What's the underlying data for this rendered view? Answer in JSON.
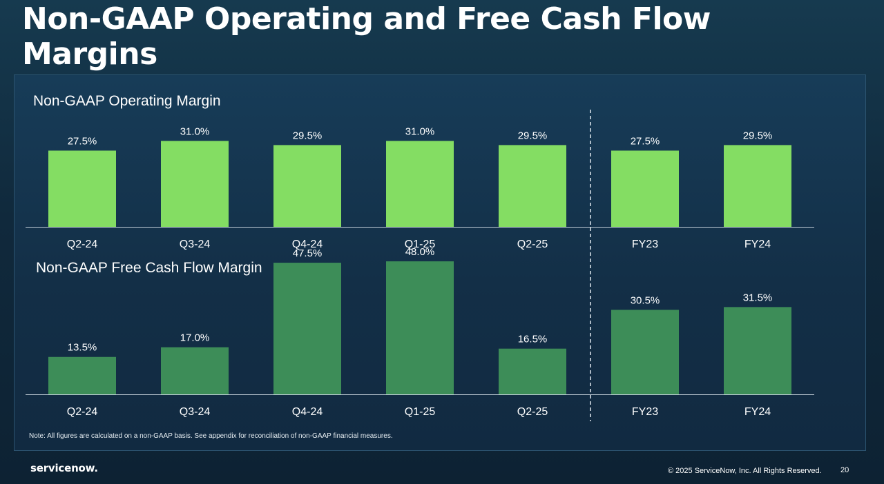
{
  "slide": {
    "title_line1": "Non-GAAP Operating and Free Cash Flow",
    "title_line2": "Margins",
    "note": "Note: All figures are calculated on a non-GAAP basis. See appendix for reconciliation of non-GAAP financial measures.",
    "logo_text": "servicenow.",
    "copyright": "© 2025 ServiceNow, Inc. All Rights Reserved.",
    "page_number": "20"
  },
  "colors": {
    "operating_bar": "#84dd63",
    "fcf_bar": "#3d8d58",
    "divider": "#dfe7ee",
    "axis": "#c7d3dc"
  },
  "chart_data": [
    {
      "type": "bar",
      "title": "Non-GAAP Operating Margin",
      "categories": [
        "Q2-24",
        "Q3-24",
        "Q4-24",
        "Q1-25",
        "Q2-25",
        "FY23",
        "FY24"
      ],
      "values": [
        27.5,
        31.0,
        29.5,
        31.0,
        29.5,
        27.5,
        29.5
      ],
      "labels": [
        "27.5%",
        "31.0%",
        "29.5%",
        "31.0%",
        "29.5%",
        "27.5%",
        "29.5%"
      ],
      "unit": "%",
      "divider_after_index": 4,
      "grid": false,
      "legend": "none"
    },
    {
      "type": "bar",
      "title": "Non-GAAP Free Cash Flow Margin",
      "categories": [
        "Q2-24",
        "Q3-24",
        "Q4-24",
        "Q1-25",
        "Q2-25",
        "FY23",
        "FY24"
      ],
      "values": [
        13.5,
        17.0,
        47.5,
        48.0,
        16.5,
        30.5,
        31.5
      ],
      "labels": [
        "13.5%",
        "17.0%",
        "47.5%",
        "48.0%",
        "16.5%",
        "30.5%",
        "31.5%"
      ],
      "unit": "%",
      "divider_after_index": 4,
      "grid": false,
      "legend": "none"
    }
  ]
}
